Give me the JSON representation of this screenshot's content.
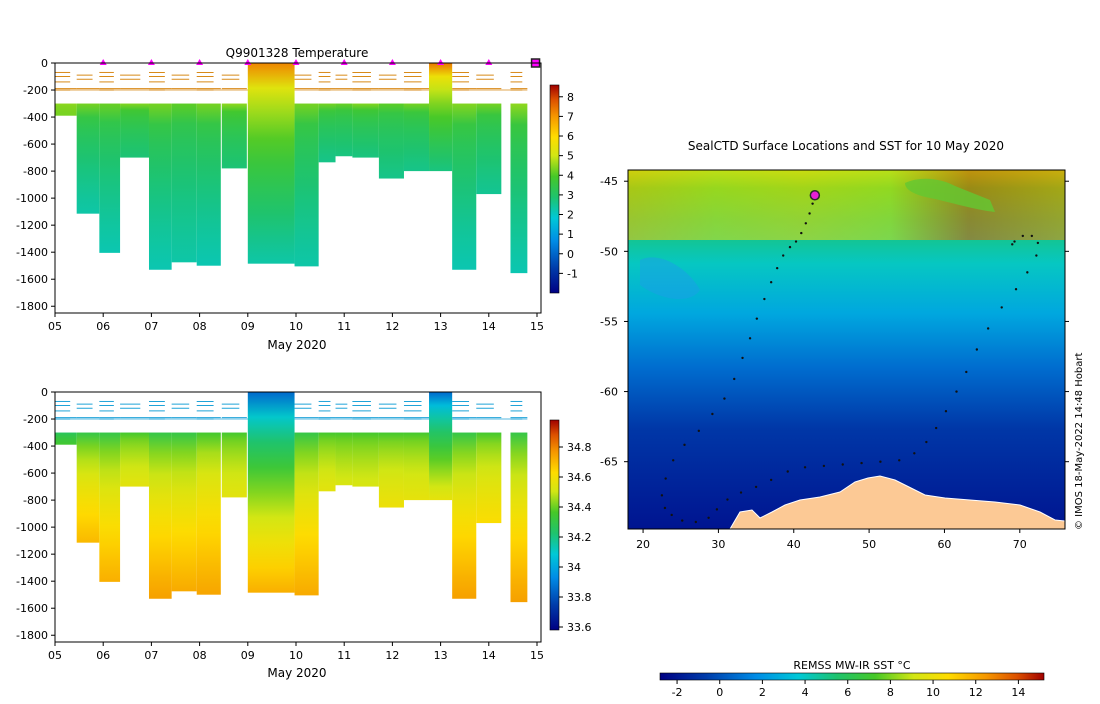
{
  "chart_data": [
    {
      "type": "heatmap",
      "title": "Q9901328  Temperature",
      "xlabel": "May 2020",
      "x_ticks": [
        "05",
        "06",
        "07",
        "08",
        "09",
        "10",
        "11",
        "12",
        "13",
        "14",
        "15"
      ],
      "y_ticks": [
        "0",
        "-200",
        "-400",
        "-600",
        "-800",
        "-1000",
        "-1200",
        "-1400",
        "-1600",
        "-1800"
      ],
      "ylim": [
        -1850,
        0
      ],
      "colorbar": {
        "ticks": [
          "8",
          "7",
          "6",
          "5",
          "4",
          "3",
          "2",
          "1",
          "0",
          "-1"
        ],
        "range": [
          -2,
          8.6
        ]
      },
      "casts": [
        {
          "day": 5.0,
          "w": 0.45,
          "bottom": -390,
          "top": -300,
          "surface": 4.5,
          "deep": 4.3
        },
        {
          "day": 5.45,
          "w": 0.47,
          "bottom": -1115,
          "top": -300,
          "surface": 4.3,
          "deep": 2.3
        },
        {
          "day": 5.92,
          "w": 0.43,
          "bottom": -1405,
          "top": -300,
          "surface": 4.2,
          "deep": 2.2
        },
        {
          "day": 6.35,
          "w": 0.6,
          "bottom": -700,
          "top": -300,
          "surface": 4.4,
          "deep": 2.8
        },
        {
          "day": 6.95,
          "w": 0.47,
          "bottom": -1530,
          "top": -300,
          "surface": 4.3,
          "deep": 2.2
        },
        {
          "day": 7.42,
          "w": 0.52,
          "bottom": -1475,
          "top": -300,
          "surface": 4.1,
          "deep": 2.3
        },
        {
          "day": 7.94,
          "w": 0.5,
          "bottom": -1500,
          "top": -300,
          "surface": 4.3,
          "deep": 2.2
        },
        {
          "day": 8.46,
          "w": 0.52,
          "bottom": -780,
          "top": -300,
          "surface": 4.5,
          "deep": 2.8
        },
        {
          "day": 9.0,
          "w": 0.97,
          "bottom": -1485,
          "top": 0,
          "surface": 7.2,
          "deep": 2.3
        },
        {
          "day": 9.97,
          "w": 0.5,
          "bottom": -1505,
          "top": -300,
          "surface": 4.3,
          "deep": 2.3
        },
        {
          "day": 10.47,
          "w": 0.35,
          "bottom": -735,
          "top": -300,
          "surface": 4.3,
          "deep": 2.6
        },
        {
          "day": 10.82,
          "w": 0.35,
          "bottom": -690,
          "top": -300,
          "surface": 4.2,
          "deep": 2.7
        },
        {
          "day": 11.17,
          "w": 0.55,
          "bottom": -700,
          "top": -300,
          "surface": 4.4,
          "deep": 2.7
        },
        {
          "day": 11.72,
          "w": 0.52,
          "bottom": -855,
          "top": -300,
          "surface": 4.1,
          "deep": 2.6
        },
        {
          "day": 12.24,
          "w": 0.52,
          "bottom": -800,
          "top": -300,
          "surface": 4.3,
          "deep": 2.6
        },
        {
          "day": 12.76,
          "w": 0.48,
          "bottom": -800,
          "top": 0,
          "surface": 7.4,
          "deep": 2.7
        },
        {
          "day": 13.24,
          "w": 0.5,
          "bottom": -1530,
          "top": -300,
          "surface": 4.4,
          "deep": 2.2
        },
        {
          "day": 13.74,
          "w": 0.52,
          "bottom": -970,
          "top": -300,
          "surface": 4.3,
          "deep": 2.5
        },
        {
          "day": 14.45,
          "w": 0.35,
          "bottom": -1555,
          "top": -300,
          "surface": 4.5,
          "deep": 2.2
        }
      ],
      "near_surface_lines": [
        -70,
        -90,
        -100,
        -120,
        -140,
        -190,
        -200
      ],
      "surfacing_markers": [
        6.0,
        7.0,
        8.0,
        9.0,
        10.0,
        11.0,
        12.0,
        13.0,
        14.0
      ]
    },
    {
      "type": "heatmap",
      "title": "",
      "xlabel": "May 2020",
      "x_ticks": [
        "05",
        "06",
        "07",
        "08",
        "09",
        "10",
        "11",
        "12",
        "13",
        "14",
        "15"
      ],
      "y_ticks": [
        "0",
        "-200",
        "-400",
        "-600",
        "-800",
        "-1000",
        "-1200",
        "-1400",
        "-1600",
        "-1800"
      ],
      "ylim": [
        -1850,
        0
      ],
      "colorbar": {
        "ticks": [
          "34.8",
          "34.6",
          "34.4",
          "34.2",
          "34",
          "33.8",
          "33.6"
        ],
        "range": [
          33.58,
          34.98
        ]
      },
      "casts": [
        {
          "day": 5.0,
          "w": 0.45,
          "bottom": -390,
          "top": -300,
          "surface": 34.25,
          "deep": 34.35
        },
        {
          "day": 5.45,
          "w": 0.47,
          "bottom": -1115,
          "top": -300,
          "surface": 34.3,
          "deep": 34.7
        },
        {
          "day": 5.92,
          "w": 0.43,
          "bottom": -1405,
          "top": -300,
          "surface": 34.3,
          "deep": 34.72
        },
        {
          "day": 6.35,
          "w": 0.6,
          "bottom": -700,
          "top": -300,
          "surface": 34.35,
          "deep": 34.55
        },
        {
          "day": 6.95,
          "w": 0.47,
          "bottom": -1530,
          "top": -300,
          "surface": 34.3,
          "deep": 34.75
        },
        {
          "day": 7.42,
          "w": 0.52,
          "bottom": -1475,
          "top": -300,
          "surface": 34.3,
          "deep": 34.73
        },
        {
          "day": 7.94,
          "w": 0.5,
          "bottom": -1500,
          "top": -300,
          "surface": 34.35,
          "deep": 34.74
        },
        {
          "day": 8.46,
          "w": 0.52,
          "bottom": -780,
          "top": -300,
          "surface": 34.35,
          "deep": 34.55
        },
        {
          "day": 9.0,
          "w": 0.97,
          "bottom": -1485,
          "top": 0,
          "surface": 33.85,
          "deep": 34.72
        },
        {
          "day": 9.97,
          "w": 0.5,
          "bottom": -1505,
          "top": -300,
          "surface": 34.3,
          "deep": 34.73
        },
        {
          "day": 10.47,
          "w": 0.35,
          "bottom": -735,
          "top": -300,
          "surface": 34.35,
          "deep": 34.55
        },
        {
          "day": 10.82,
          "w": 0.35,
          "bottom": -690,
          "top": -300,
          "surface": 34.35,
          "deep": 34.52
        },
        {
          "day": 11.17,
          "w": 0.55,
          "bottom": -700,
          "top": -300,
          "surface": 34.35,
          "deep": 34.52
        },
        {
          "day": 11.72,
          "w": 0.52,
          "bottom": -855,
          "top": -300,
          "surface": 34.35,
          "deep": 34.58
        },
        {
          "day": 12.24,
          "w": 0.52,
          "bottom": -800,
          "top": -300,
          "surface": 34.35,
          "deep": 34.56
        },
        {
          "day": 12.76,
          "w": 0.48,
          "bottom": -800,
          "top": 0,
          "surface": 33.85,
          "deep": 34.56
        },
        {
          "day": 13.24,
          "w": 0.5,
          "bottom": -1530,
          "top": -300,
          "surface": 34.3,
          "deep": 34.75
        },
        {
          "day": 13.74,
          "w": 0.52,
          "bottom": -970,
          "top": -300,
          "surface": 34.35,
          "deep": 34.62
        },
        {
          "day": 14.45,
          "w": 0.35,
          "bottom": -1555,
          "top": -300,
          "surface": 34.3,
          "deep": 34.75
        }
      ],
      "near_surface_lines": [
        -70,
        -90,
        -100,
        -120,
        -140,
        -190,
        -200
      ]
    },
    {
      "type": "heatmap",
      "title": "SealCTD Surface Locations and SST for 10 May 2020",
      "xlabel": "",
      "x_ticks": [
        "20",
        "30",
        "40",
        "50",
        "60",
        "70"
      ],
      "y_ticks": [
        "-45",
        "-50",
        "-55",
        "-60",
        "-65"
      ],
      "xlim": [
        18,
        76
      ],
      "ylim": [
        -69.8,
        -44.2
      ],
      "colorbar": {
        "label": "REMSS MW-IR SST °C",
        "ticks": [
          "-2",
          "0",
          "2",
          "4",
          "6",
          "8",
          "10",
          "12",
          "14"
        ],
        "range": [
          -2.8,
          15.2
        ]
      },
      "current_position": [
        42.8,
        -46.0
      ],
      "track": [
        [
          42.8,
          -46.0
        ],
        [
          42.5,
          -46.6
        ],
        [
          42.1,
          -47.3
        ],
        [
          41.6,
          -48.0
        ],
        [
          41.0,
          -48.7
        ],
        [
          40.3,
          -49.3
        ],
        [
          39.5,
          -49.7
        ],
        [
          38.6,
          -50.3
        ],
        [
          37.8,
          -51.2
        ],
        [
          37.0,
          -52.2
        ],
        [
          36.1,
          -53.4
        ],
        [
          35.1,
          -54.8
        ],
        [
          34.2,
          -56.2
        ],
        [
          33.2,
          -57.6
        ],
        [
          32.1,
          -59.1
        ],
        [
          30.8,
          -60.5
        ],
        [
          29.2,
          -61.6
        ],
        [
          27.4,
          -62.8
        ],
        [
          25.5,
          -63.8
        ],
        [
          24.0,
          -64.9
        ],
        [
          23.0,
          -66.2
        ],
        [
          22.5,
          -67.4
        ],
        [
          22.9,
          -68.3
        ],
        [
          23.8,
          -68.8
        ],
        [
          25.2,
          -69.2
        ],
        [
          27.0,
          -69.3
        ],
        [
          28.7,
          -69.0
        ],
        [
          29.8,
          -68.4
        ],
        [
          31.2,
          -67.7
        ],
        [
          33.0,
          -67.2
        ],
        [
          35.0,
          -66.8
        ],
        [
          37.0,
          -66.3
        ],
        [
          39.2,
          -65.7
        ],
        [
          41.5,
          -65.4
        ],
        [
          44.0,
          -65.3
        ],
        [
          46.5,
          -65.2
        ],
        [
          49.0,
          -65.1
        ],
        [
          51.5,
          -65.0
        ],
        [
          54.0,
          -64.9
        ],
        [
          56.0,
          -64.4
        ],
        [
          57.6,
          -63.6
        ],
        [
          58.9,
          -62.6
        ],
        [
          60.2,
          -61.4
        ],
        [
          61.6,
          -60.0
        ],
        [
          62.9,
          -58.6
        ],
        [
          64.3,
          -57.0
        ],
        [
          65.8,
          -55.5
        ],
        [
          67.6,
          -54.0
        ],
        [
          69.5,
          -52.7
        ],
        [
          71.0,
          -51.5
        ],
        [
          72.2,
          -50.3
        ],
        [
          72.4,
          -49.4
        ],
        [
          71.6,
          -48.9
        ],
        [
          70.4,
          -48.9
        ],
        [
          69.3,
          -49.3
        ],
        [
          69.0,
          -49.5
        ]
      ],
      "annotation": "© IMOS 18-May-2022 14:48 Hobart"
    }
  ]
}
